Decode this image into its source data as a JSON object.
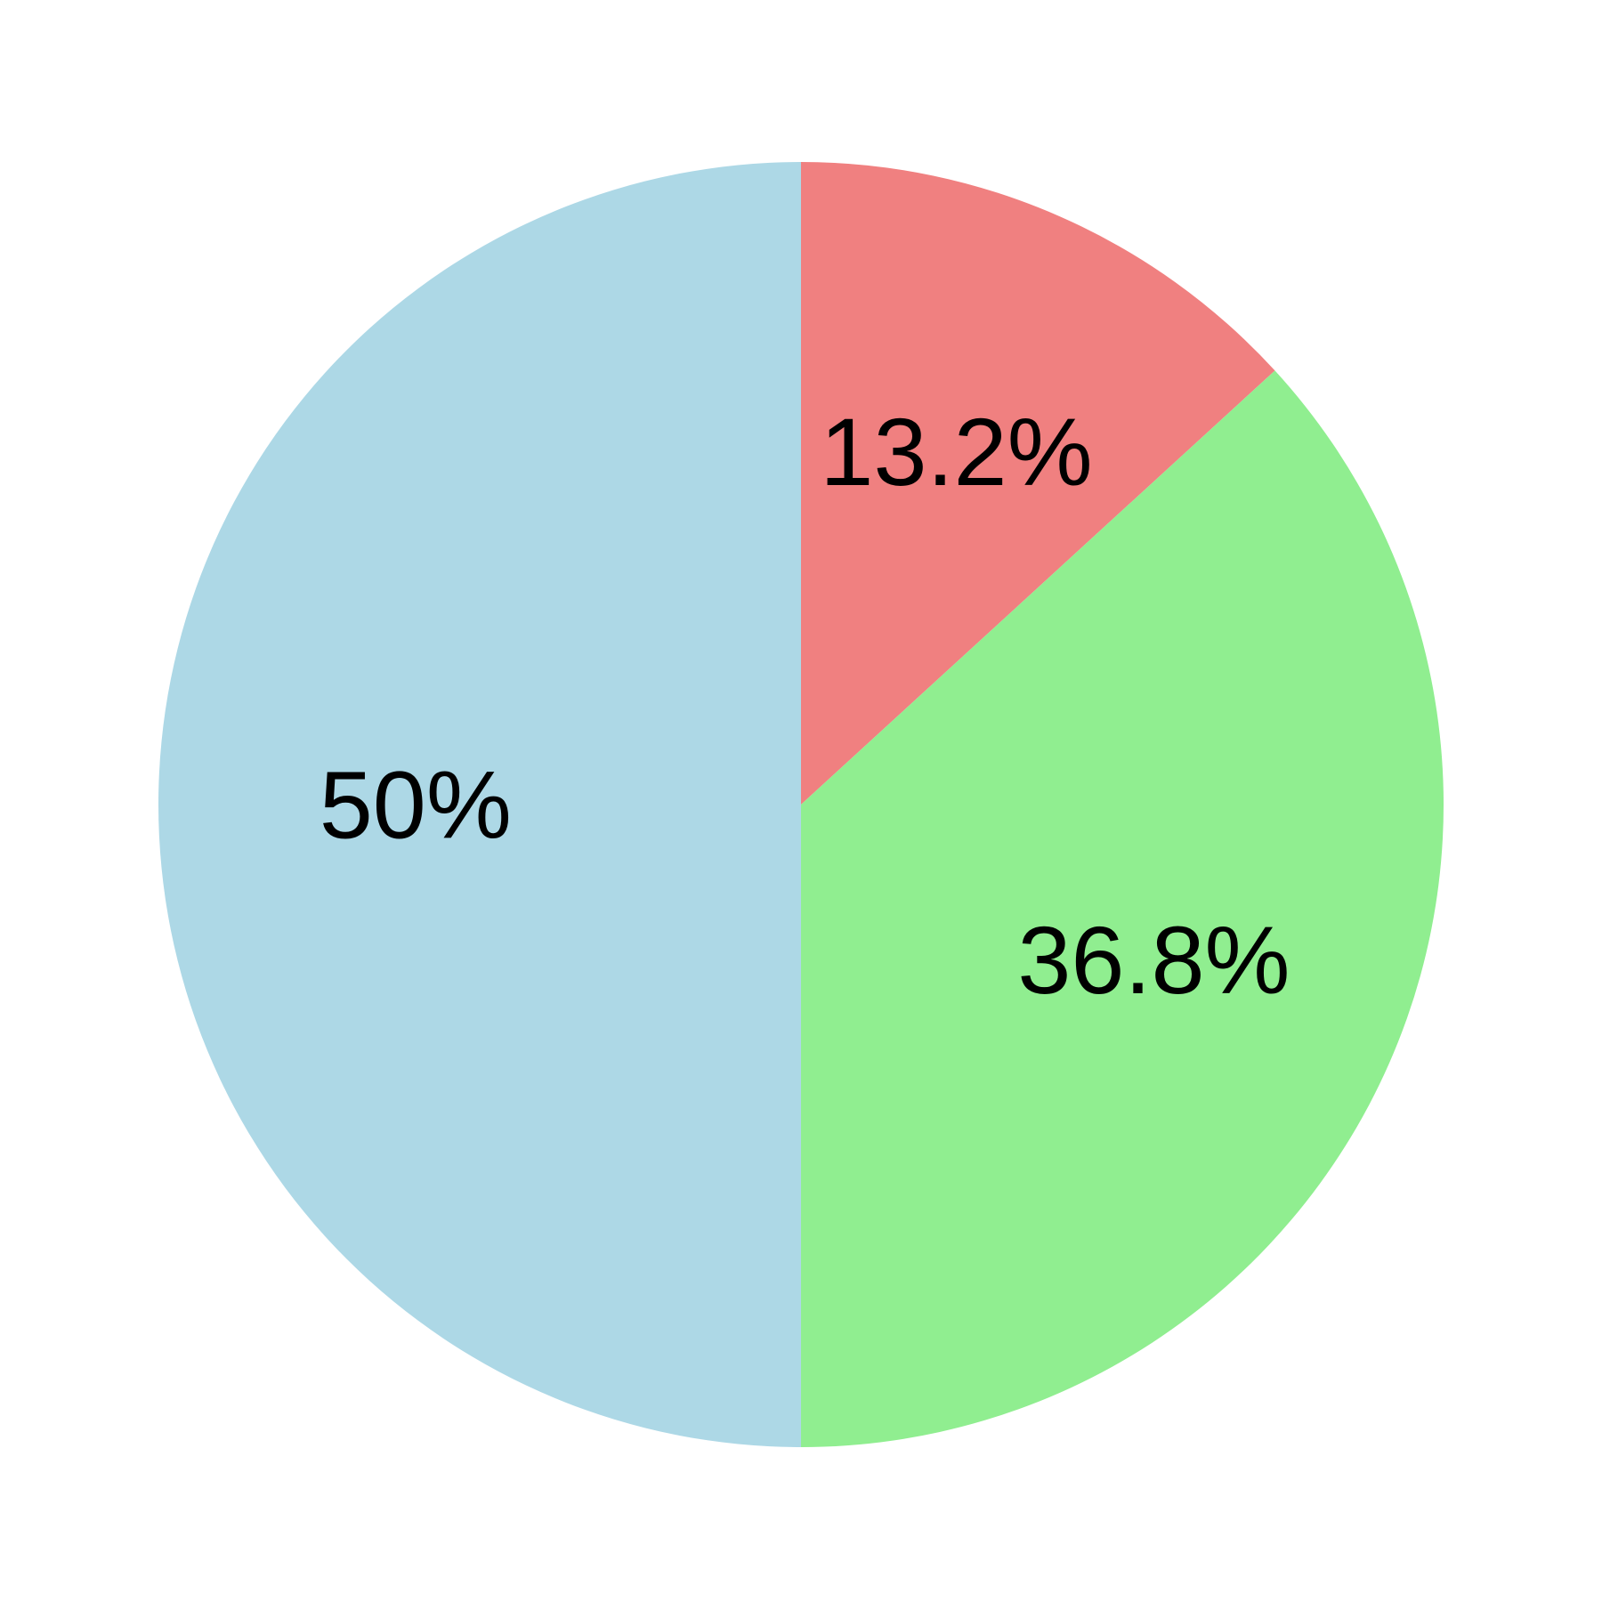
{
  "chart_data": {
    "type": "pie",
    "title": "",
    "start_angle_deg": 90,
    "direction": "clockwise",
    "slices": [
      {
        "value": 13.2,
        "label": "13.2%",
        "color": "#f08080"
      },
      {
        "value": 36.8,
        "label": "36.8%",
        "color": "#90ee90"
      },
      {
        "value": 50,
        "label": "50%",
        "color": "#add8e6"
      }
    ],
    "legend": "none"
  }
}
